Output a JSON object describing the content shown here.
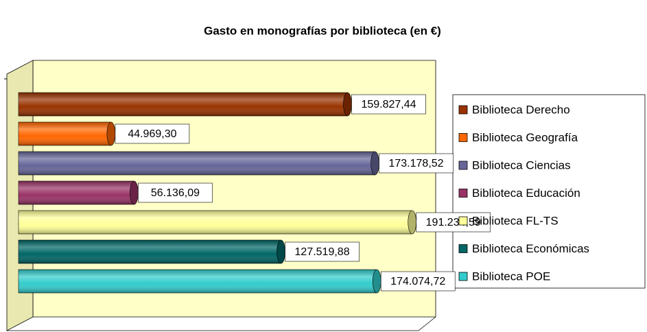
{
  "chart_data": {
    "type": "bar",
    "orientation": "horizontal",
    "title": "Gasto en monografías por biblioteca (en €)",
    "xlim": [
      0,
      200000
    ],
    "legend": "right",
    "series": [
      {
        "name": "Biblioteca Derecho",
        "color": "#993300",
        "values": [
          159827.44
        ],
        "value_labels": [
          "159.827,44"
        ]
      },
      {
        "name": "Biblioteca Geografía",
        "color": "#ff6600",
        "values": [
          44969.3
        ],
        "value_labels": [
          "44.969,30"
        ]
      },
      {
        "name": "Biblioteca Ciencias",
        "color": "#666699",
        "values": [
          173178.52
        ],
        "value_labels": [
          "173.178,52"
        ]
      },
      {
        "name": "Biblioteca Educación",
        "color": "#993366",
        "values": [
          56136.09
        ],
        "value_labels": [
          "56.136,09"
        ]
      },
      {
        "name": "Biblioteca FL-TS",
        "color": "#ffff99",
        "values": [
          191234.59
        ],
        "value_labels": [
          "191.234,59"
        ]
      },
      {
        "name": "Biblioteca Económicas",
        "color": "#006666",
        "values": [
          127519.88
        ],
        "value_labels": [
          "127.519,88"
        ]
      },
      {
        "name": "Biblioteca POE",
        "color": "#33cccc",
        "values": [
          174074.72
        ],
        "value_labels": [
          "174.074,72"
        ]
      }
    ]
  }
}
